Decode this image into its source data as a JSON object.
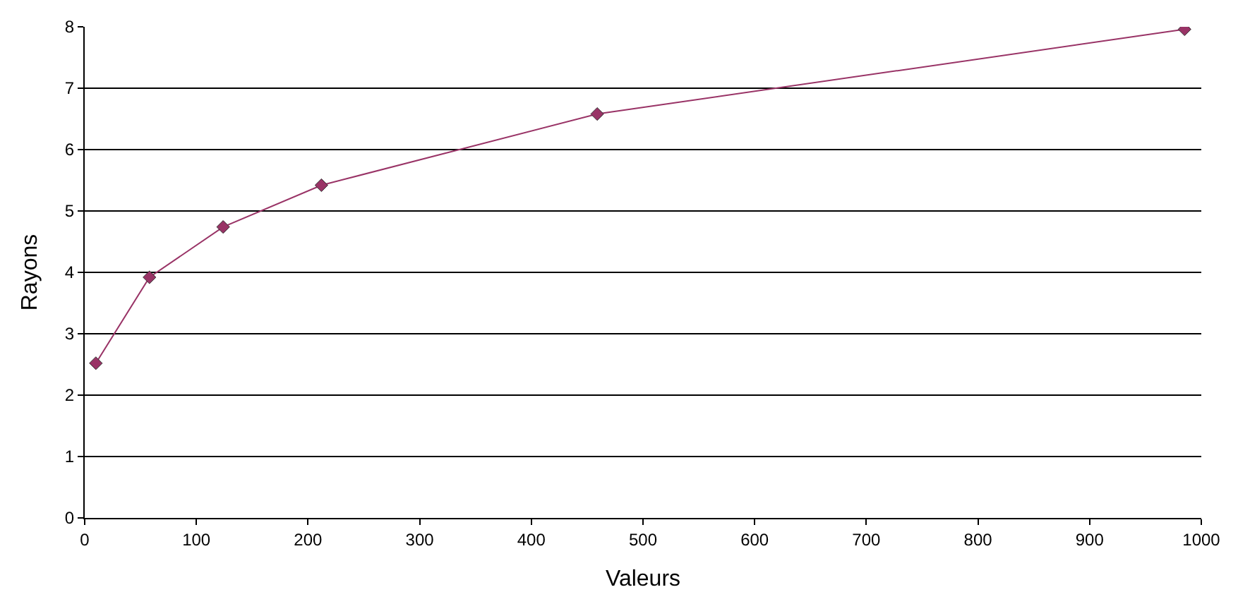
{
  "chart_data": {
    "type": "line",
    "xlabel": "Valeurs",
    "ylabel": "Rayons",
    "x": [
      10,
      58,
      124,
      212,
      459,
      985
    ],
    "series": [
      {
        "color": "#993366",
        "values": [
          2.52,
          3.92,
          4.74,
          5.42,
          6.58,
          7.96
        ]
      }
    ],
    "xlim": [
      0,
      1000
    ],
    "xticks": [
      0,
      100,
      200,
      300,
      400,
      500,
      600,
      700,
      800,
      900,
      1000
    ],
    "ylim": [
      0,
      8
    ],
    "yticks": [
      0,
      1,
      2,
      3,
      4,
      5,
      6,
      7,
      8
    ],
    "grid": "y",
    "marker": "diamond",
    "line_style": "solid"
  }
}
